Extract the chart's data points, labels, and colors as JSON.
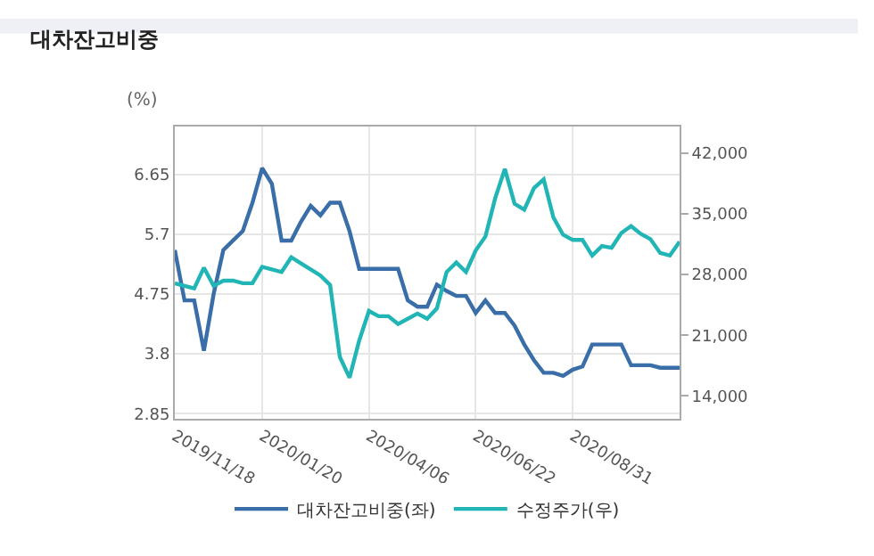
{
  "chart_data": {
    "type": "line",
    "title": "대차잔고비중",
    "ylabel": "(%)",
    "x": [
      "2019-11-18",
      "2019-11-25",
      "2019-12-02",
      "2019-12-09",
      "2019-12-16",
      "2019-12-23",
      "2019-12-30",
      "2020-01-06",
      "2020-01-13",
      "2020-01-20",
      "2020-01-27",
      "2020-02-03",
      "2020-02-10",
      "2020-02-17",
      "2020-02-24",
      "2020-03-02",
      "2020-03-09",
      "2020-03-16",
      "2020-03-23",
      "2020-03-30",
      "2020-04-06",
      "2020-04-13",
      "2020-04-20",
      "2020-04-27",
      "2020-05-04",
      "2020-05-11",
      "2020-05-18",
      "2020-05-25",
      "2020-06-01",
      "2020-06-08",
      "2020-06-15",
      "2020-06-22",
      "2020-06-29",
      "2020-07-06",
      "2020-07-13",
      "2020-07-20",
      "2020-07-27",
      "2020-08-03",
      "2020-08-10",
      "2020-08-17",
      "2020-08-24",
      "2020-08-31",
      "2020-09-07",
      "2020-09-14",
      "2020-09-21",
      "2020-09-28",
      "2020-10-05",
      "2020-10-12",
      "2020-10-19",
      "2020-10-26",
      "2020-11-02",
      "2020-11-09",
      "2020-11-16"
    ],
    "series": [
      {
        "name": "대차잔고비중(좌)",
        "color": "#3a6ea8",
        "values": [
          5.45,
          4.65,
          4.65,
          3.85,
          4.75,
          5.45,
          5.6,
          5.75,
          6.2,
          6.75,
          6.5,
          5.6,
          5.6,
          5.9,
          6.15,
          6.0,
          6.2,
          6.2,
          5.75,
          5.15,
          5.15,
          5.15,
          5.15,
          5.15,
          4.65,
          4.55,
          4.55,
          4.9,
          4.8,
          4.72,
          4.72,
          4.45,
          4.65,
          4.45,
          4.45,
          4.25,
          3.95,
          3.7,
          3.5,
          3.5,
          3.45,
          3.55,
          3.6,
          3.95,
          3.95,
          3.95,
          3.95,
          3.62,
          3.62,
          3.62,
          3.58,
          3.58,
          3.58
        ]
      },
      {
        "name": "수정주가(우)",
        "color": "#22b5b5",
        "axis": "y2",
        "values": [
          27000,
          26700,
          26400,
          28800,
          26700,
          27300,
          27300,
          27000,
          27000,
          28900,
          28600,
          28300,
          30000,
          29300,
          28600,
          27900,
          26800,
          18500,
          16100,
          20400,
          23800,
          23200,
          23200,
          22300,
          22900,
          23500,
          22900,
          24100,
          28300,
          29400,
          28300,
          30800,
          32400,
          36800,
          40200,
          36200,
          35500,
          38000,
          39000,
          34600,
          32600,
          32000,
          32000,
          30200,
          31300,
          31100,
          32800,
          33600,
          32700,
          32100,
          30500,
          30200,
          31800
        ]
      }
    ],
    "xlim": [
      "2019-11-18",
      "2020-11-16"
    ],
    "xticks": [
      {
        "value": "2019-11-18",
        "label": "2019/11/18"
      },
      {
        "value": "2020-01-20",
        "label": "2020/01/20"
      },
      {
        "value": "2020-04-06",
        "label": "2020/04/06"
      },
      {
        "value": "2020-06-22",
        "label": "2020/06/22"
      },
      {
        "value": "2020-08-31",
        "label": "2020/08/31"
      }
    ],
    "ylim": [
      2.77,
      7.41
    ],
    "yticks": [
      2.85,
      3.8,
      4.75,
      5.7,
      6.65
    ],
    "y2lim": [
      11350,
      45100
    ],
    "y2ticks": [
      {
        "value": 14000,
        "label": "14,000"
      },
      {
        "value": 21000,
        "label": "21,000"
      },
      {
        "value": 28000,
        "label": "28,000"
      },
      {
        "value": 35000,
        "label": "35,000"
      },
      {
        "value": 42000,
        "label": "42,000"
      }
    ],
    "grid": true,
    "legend": "bottom",
    "marker": "none",
    "line_style": "solid"
  }
}
